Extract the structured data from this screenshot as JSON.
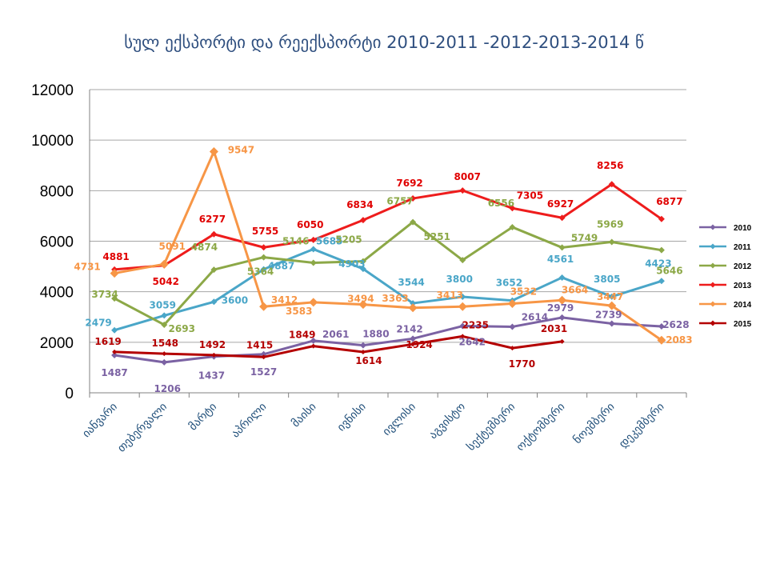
{
  "chart_data": {
    "type": "line",
    "title": "სულ  ექსპორტი და რეექსპორტი 2010-2011 -2012-2013-2014 წ",
    "categories": [
      "იანვარი",
      "თებერვალი",
      "მარტი",
      "აპრილი",
      "მაისი",
      "ივნისი",
      "ივლისი",
      "აგვისტო",
      "სექტემბერი",
      "ოქტომბერი",
      "ნოემბერი",
      "დეკემბერი"
    ],
    "ylim": [
      0,
      12000
    ],
    "yticks": [
      "0",
      "2000",
      "4000",
      "6000",
      "8000",
      "10000",
      "12000"
    ],
    "grid": true,
    "legend_position": "right",
    "series": [
      {
        "name": "2010",
        "color": "#7b62a3",
        "values": [
          1487,
          1206,
          1437,
          1527,
          2061,
          1880,
          2142,
          2642,
          2614,
          2979,
          2739,
          2628
        ]
      },
      {
        "name": "2011",
        "color": "#4aa6c8",
        "values": [
          2479,
          3059,
          3600,
          4887,
          5685,
          4903,
          3544,
          3800,
          3652,
          4561,
          3805,
          4423
        ]
      },
      {
        "name": "2012",
        "color": "#8ca847",
        "values": [
          3734,
          2693,
          4874,
          5364,
          5146,
          5205,
          6757,
          5251,
          6556,
          5749,
          5969,
          5646
        ]
      },
      {
        "name": "2013",
        "color": "#ee1c1c",
        "values": [
          4881,
          5042,
          6277,
          5755,
          6050,
          6834,
          7692,
          8007,
          7305,
          6927,
          8256,
          6877
        ]
      },
      {
        "name": "2014",
        "color": "#f79646",
        "values": [
          4731,
          5091,
          9547,
          3412,
          3583,
          3494,
          3363,
          3413,
          3532,
          3664,
          3447,
          2083
        ]
      },
      {
        "name": "2015",
        "color": "#b40000",
        "values": [
          1619,
          1548,
          1492,
          1415,
          1849,
          1614,
          1924,
          2235,
          1770,
          2031,
          null,
          null
        ]
      }
    ]
  }
}
